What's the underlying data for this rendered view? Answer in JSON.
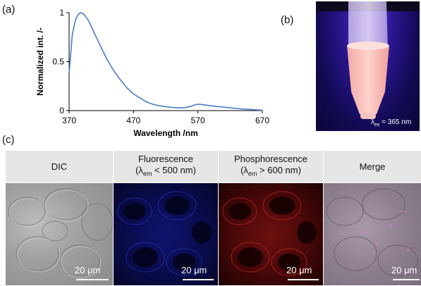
{
  "panel_labels": {
    "a": "(a)",
    "b": "(b)",
    "c": "(c)"
  },
  "chart_data": {
    "type": "line",
    "xlabel": "Wavelength /nm",
    "ylabel": "Normalized int. /-",
    "xlim": [
      370,
      670
    ],
    "ylim": [
      0,
      1
    ],
    "xticks": [
      370,
      470,
      570,
      670
    ],
    "yticks": [
      0,
      0.5,
      1
    ],
    "ytick_labels": [
      "0",
      "0.5",
      "1"
    ],
    "grid": false,
    "series": [
      {
        "color": "#4a7cc9",
        "x": [
          370,
          375,
          380,
          385,
          388,
          392,
          396,
          400,
          405,
          410,
          420,
          430,
          440,
          450,
          460,
          470,
          480,
          490,
          500,
          510,
          520,
          530,
          540,
          550,
          560,
          565,
          570,
          575,
          580,
          590,
          600,
          610,
          620,
          630,
          640,
          650,
          660,
          670
        ],
        "y": [
          0.38,
          0.78,
          0.93,
          0.99,
          1.0,
          0.99,
          0.96,
          0.92,
          0.85,
          0.78,
          0.64,
          0.51,
          0.4,
          0.31,
          0.23,
          0.17,
          0.13,
          0.09,
          0.065,
          0.05,
          0.04,
          0.033,
          0.028,
          0.03,
          0.045,
          0.058,
          0.065,
          0.063,
          0.058,
          0.05,
          0.042,
          0.035,
          0.028,
          0.022,
          0.016,
          0.012,
          0.008,
          0.004
        ]
      }
    ]
  },
  "photo_b": {
    "lambda_symbol": "λ",
    "lambda_sub": "ex",
    "lambda_rest": " = 365 nm"
  },
  "panel_c": {
    "headers": [
      {
        "line1": "DIC",
        "line2": "",
        "sub": "",
        "rest": ""
      },
      {
        "line1": "Fluorescence",
        "line2": "(λ",
        "sub": "em",
        "rest": " < 500 nm)"
      },
      {
        "line1": "Phosphorescence",
        "line2": "(λ",
        "sub": "em",
        "rest": " > 600 nm)"
      },
      {
        "line1": "Merge",
        "line2": "",
        "sub": "",
        "rest": ""
      }
    ],
    "scale_bar_text": "20 μm"
  }
}
